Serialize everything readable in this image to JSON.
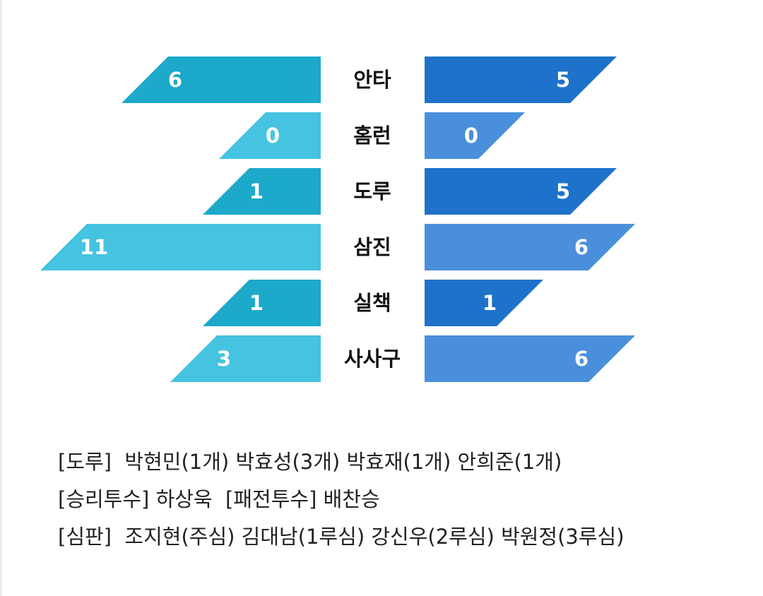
{
  "chart_data": {
    "type": "bar",
    "categories": [
      "안타",
      "홈런",
      "도루",
      "삼진",
      "실책",
      "사사구"
    ],
    "series": [
      {
        "values": [
          6,
          0,
          1,
          11,
          1,
          3
        ]
      },
      {
        "values": [
          5,
          0,
          5,
          6,
          1,
          6
        ]
      }
    ],
    "title": "",
    "xlabel": "",
    "ylabel": "",
    "colors": {
      "left_dark": "#1da9c9",
      "left_light": "#45c3e1",
      "right_dark": "#1e72c9",
      "right_light": "#4a8fdb"
    }
  },
  "notes": [
    "[도루]  박현민(1개) 박효성(3개) 박효재(1개) 안희준(1개)",
    "[승리투수] 하상욱  [패전투수] 배찬승",
    "[심판]  조지현(주심) 김대남(1루심) 강신우(2루심) 박원정(3루심)"
  ]
}
